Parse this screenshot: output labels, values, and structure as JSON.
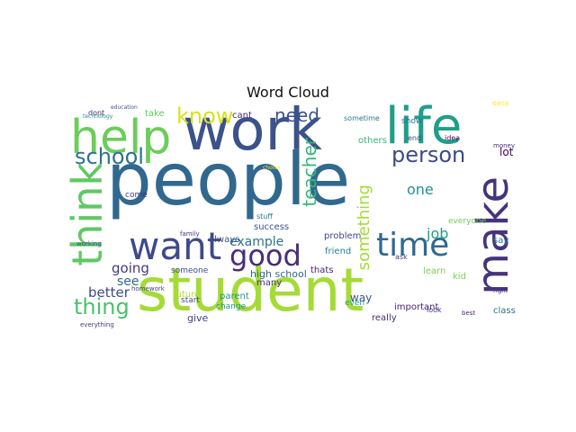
{
  "title": "Word Cloud",
  "words": [
    {
      "text": "people",
      "color": "#31688e"
    },
    {
      "text": "student",
      "color": "#a5db36"
    },
    {
      "text": "work",
      "color": "#3b528b"
    },
    {
      "text": "life",
      "color": "#1f9e89"
    },
    {
      "text": "help",
      "color": "#6ccd5a"
    },
    {
      "text": "think",
      "color": "#5ec962"
    },
    {
      "text": "want",
      "color": "#3e4a89"
    },
    {
      "text": "make",
      "color": "#46337e"
    },
    {
      "text": "time",
      "color": "#31688e"
    },
    {
      "text": "good",
      "color": "#472d7b"
    },
    {
      "text": "know",
      "color": "#d8e219"
    },
    {
      "text": "need",
      "color": "#3b528b"
    },
    {
      "text": "school",
      "color": "#2c728e"
    },
    {
      "text": "person",
      "color": "#3e4a89"
    },
    {
      "text": "thing",
      "color": "#4ac16d"
    },
    {
      "text": "teacher",
      "color": "#35b779"
    },
    {
      "text": "something",
      "color": "#a5db36"
    },
    {
      "text": "example",
      "color": "#2c728e"
    },
    {
      "text": "job",
      "color": "#1f9e89"
    },
    {
      "text": "one",
      "color": "#21918c"
    },
    {
      "text": "going",
      "color": "#443983"
    },
    {
      "text": "better",
      "color": "#3e4a89"
    },
    {
      "text": "see",
      "color": "#31688e"
    },
    {
      "text": "lot",
      "color": "#440154"
    },
    {
      "text": "high school",
      "color": "#31688e"
    },
    {
      "text": "class",
      "color": "#2c728e"
    },
    {
      "text": "way",
      "color": "#3b528b"
    },
    {
      "text": "kid",
      "color": "#7ad151"
    },
    {
      "text": "really",
      "color": "#472d7b"
    },
    {
      "text": "important",
      "color": "#482475"
    },
    {
      "text": "give",
      "color": "#414487"
    },
    {
      "text": "parent",
      "color": "#21918c"
    },
    {
      "text": "future",
      "color": "#b5de2b"
    },
    {
      "text": "always",
      "color": "#3b528b"
    },
    {
      "text": "others",
      "color": "#35b779"
    },
    {
      "text": "success",
      "color": "#3b528b"
    },
    {
      "text": "take",
      "color": "#5ec962"
    },
    {
      "text": "cant",
      "color": "#482878"
    },
    {
      "text": "problem",
      "color": "#414487"
    },
    {
      "text": "friend",
      "color": "#26828e"
    },
    {
      "text": "many",
      "color": "#472d7b"
    },
    {
      "text": "thats",
      "color": "#482475"
    },
    {
      "text": "everyone",
      "color": "#6ccd5a"
    },
    {
      "text": "learn",
      "color": "#7ad151"
    },
    {
      "text": "say",
      "color": "#2a788e"
    },
    {
      "text": "start",
      "color": "#3b528b"
    },
    {
      "text": "change",
      "color": "#21918c"
    },
    {
      "text": "even",
      "color": "#1f9e89"
    },
    {
      "text": "come",
      "color": "#443983"
    },
    {
      "text": "someone",
      "color": "#3e4a89"
    },
    {
      "text": "sometime",
      "color": "#2a788e"
    },
    {
      "text": "show",
      "color": "#2c728e"
    },
    {
      "text": "dont",
      "color": "#482878"
    },
    {
      "text": "stuff",
      "color": "#2c728e"
    },
    {
      "text": "money",
      "color": "#472d7b"
    },
    {
      "text": "idea",
      "color": "#440154"
    },
    {
      "text": "end",
      "color": "#3e4a89"
    },
    {
      "text": "ask",
      "color": "#414487"
    },
    {
      "text": "look",
      "color": "#443983"
    },
    {
      "text": "best",
      "color": "#481f70"
    },
    {
      "text": "right",
      "color": "#46337e"
    },
    {
      "text": "choice",
      "color": "#fde725"
    },
    {
      "text": "easy",
      "color": "#fde725"
    },
    {
      "text": "working",
      "color": "#3b528b"
    },
    {
      "text": "everything",
      "color": "#443983"
    },
    {
      "text": "homework",
      "color": "#414487"
    },
    {
      "text": "family",
      "color": "#46337e"
    },
    {
      "text": "technology",
      "color": "#21918c"
    },
    {
      "text": "education",
      "color": "#3b528b"
    }
  ]
}
